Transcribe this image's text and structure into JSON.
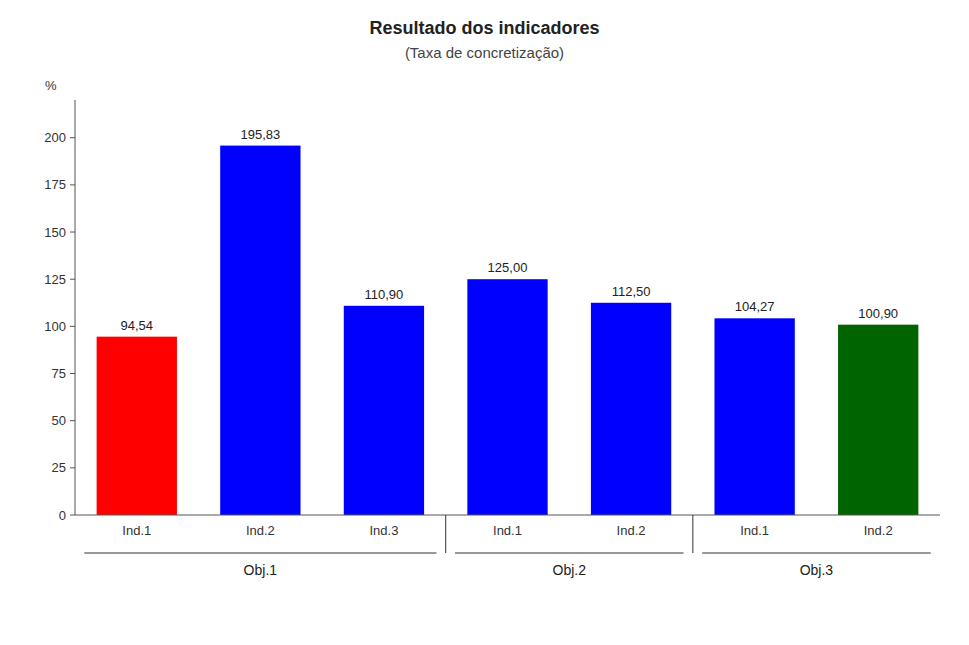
{
  "chart_data": {
    "type": "bar",
    "title": "Resultado dos indicadores",
    "subtitle": "(Taxa de concretização)",
    "ylabel": "%",
    "categories": [
      "Ind.1",
      "Ind.2",
      "Ind.3",
      "Ind.1",
      "Ind.2",
      "Ind.1",
      "Ind.2"
    ],
    "category_groups": [
      "Obj.1",
      "Obj.1",
      "Obj.1",
      "Obj.2",
      "Obj.2",
      "Obj.3",
      "Obj.3"
    ],
    "values": [
      94.54,
      195.83,
      110.9,
      125.0,
      112.5,
      104.27,
      100.9
    ],
    "value_labels": [
      "94,54",
      "195,83",
      "110,90",
      "125,00",
      "112,50",
      "104,27",
      "100,90"
    ],
    "colors": [
      "#ff0000",
      "#0000ff",
      "#0000ff",
      "#0000ff",
      "#0000ff",
      "#0000ff",
      "#006400"
    ],
    "ylim": [
      0,
      220
    ],
    "yticks": [
      0,
      25,
      50,
      75,
      100,
      125,
      150,
      175,
      200
    ],
    "grid": false,
    "data_labels": true
  }
}
